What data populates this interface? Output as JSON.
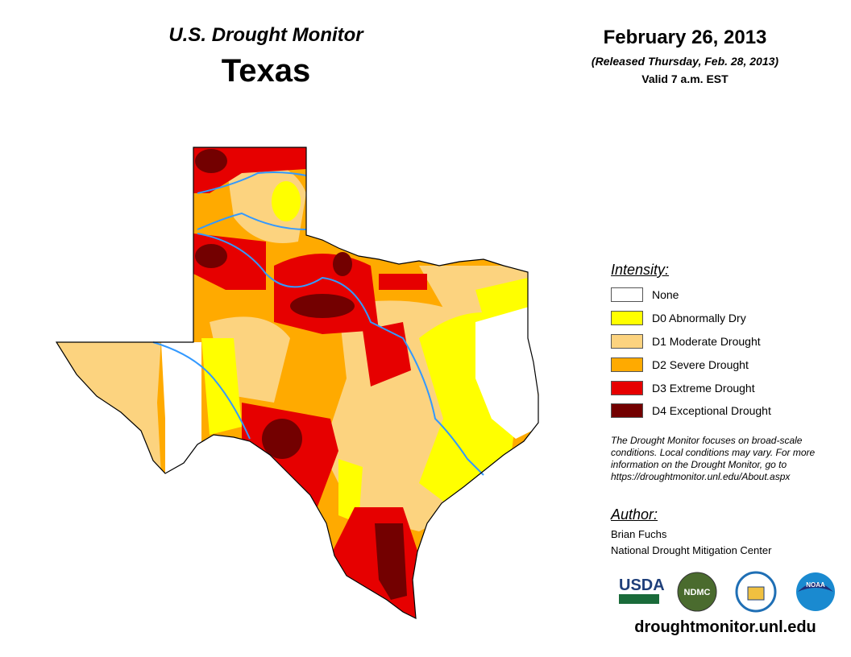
{
  "header": {
    "title": "U.S. Drought Monitor",
    "region": "Texas",
    "date": "February 26, 2013",
    "released": "(Released Thursday, Feb. 28, 2013)",
    "valid": "Valid 7 a.m. EST"
  },
  "legend": {
    "title": "Intensity:",
    "items": [
      {
        "label": "None",
        "color": "#ffffff"
      },
      {
        "label": "D0 Abnormally Dry",
        "color": "#ffff00"
      },
      {
        "label": "D1 Moderate Drought",
        "color": "#fcd37f"
      },
      {
        "label": "D2 Severe Drought",
        "color": "#ffaa00"
      },
      {
        "label": "D3 Extreme Drought",
        "color": "#e60000"
      },
      {
        "label": "D4 Exceptional Drought",
        "color": "#730000"
      }
    ]
  },
  "note": "The Drought Monitor focuses on broad-scale conditions. Local conditions may vary. For more information on the Drought Monitor, go to https://droughtmonitor.unl.edu/About.aspx",
  "author": {
    "title": "Author:",
    "name": "Brian Fuchs",
    "org": "National Drought Mitigation Center"
  },
  "logos": [
    "USDA",
    "NDMC",
    "Department of Commerce",
    "NOAA"
  ],
  "footer_url": "droughtmonitor.unl.edu",
  "river_color": "#3399ff"
}
